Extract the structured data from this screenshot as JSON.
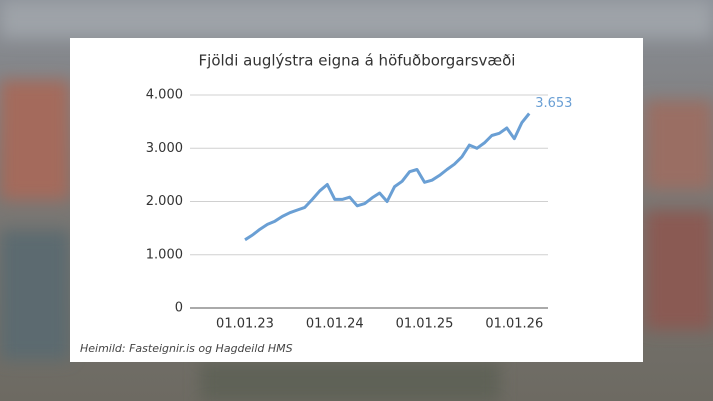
{
  "chart_data": {
    "type": "line",
    "title": "Fjöldi auglýstra eigna á höfuðborgarsvæði",
    "source": "Heimild: Fasteignir.is og Hagdeild HMS",
    "categories": [
      "01.01.23",
      null,
      null,
      null,
      null,
      null,
      null,
      null,
      null,
      null,
      null,
      null,
      "01.01.24",
      null,
      null,
      null,
      null,
      null,
      null,
      null,
      null,
      null,
      null,
      null,
      "01.01.25",
      null,
      null,
      null,
      null,
      null,
      null,
      null,
      null,
      null,
      null,
      null,
      "01.01.26",
      null,
      null
    ],
    "values": [
      1280,
      1370,
      1480,
      1570,
      1630,
      1720,
      1790,
      1840,
      1890,
      2040,
      2200,
      2320,
      2040,
      2040,
      2080,
      1920,
      1960,
      2070,
      2160,
      2000,
      2280,
      2380,
      2560,
      2600,
      2360,
      2400,
      2490,
      2600,
      2700,
      2840,
      3060,
      3000,
      3100,
      3240,
      3280,
      3380,
      3180,
      3480,
      3653
    ],
    "value_labels": [
      null,
      null,
      null,
      null,
      null,
      null,
      null,
      null,
      null,
      null,
      null,
      null,
      null,
      null,
      null,
      null,
      null,
      null,
      null,
      null,
      null,
      null,
      null,
      null,
      null,
      null,
      null,
      null,
      null,
      null,
      null,
      null,
      null,
      null,
      null,
      null,
      null,
      null,
      "3.653"
    ],
    "color": "#6a9fd4",
    "ylim": [
      0,
      4000
    ],
    "yticks": [
      0,
      {
        "value": 1000,
        "label": "1.000"
      },
      {
        "value": 2000,
        "label": "2.000"
      },
      {
        "value": 3000,
        "label": "3.000"
      },
      {
        "value": 4000,
        "label": "4.000"
      }
    ],
    "grid": true
  }
}
